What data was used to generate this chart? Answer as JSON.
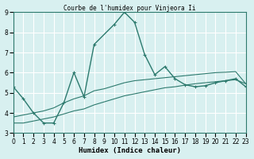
{
  "title": "Courbe de l'humidex pour Vinjeora Ii",
  "xlabel": "Humidex (Indice chaleur)",
  "bg_color": "#d8f0f0",
  "grid_color": "#ffffff",
  "line_color": "#2d7a6e",
  "xlim": [
    0,
    23
  ],
  "ylim": [
    3,
    9
  ],
  "xticks": [
    0,
    1,
    2,
    3,
    4,
    5,
    6,
    7,
    8,
    9,
    10,
    11,
    12,
    13,
    14,
    15,
    16,
    17,
    18,
    19,
    20,
    21,
    22,
    23
  ],
  "yticks": [
    3,
    4,
    5,
    6,
    7,
    8,
    9
  ],
  "main_line_x": [
    0,
    1,
    2,
    3,
    4,
    5,
    6,
    7,
    8,
    10,
    11,
    12,
    13,
    14,
    15,
    16,
    17,
    18,
    19,
    20,
    21,
    22,
    23
  ],
  "main_line_y": [
    5.3,
    4.7,
    4.0,
    3.5,
    3.5,
    4.5,
    6.0,
    4.8,
    7.4,
    8.4,
    9.0,
    8.5,
    6.9,
    5.9,
    6.3,
    5.7,
    5.4,
    5.3,
    5.35,
    5.5,
    5.6,
    5.7,
    5.3
  ],
  "lower_line_x": [
    0,
    1,
    2,
    3,
    4,
    5,
    6,
    7,
    8,
    9,
    10,
    11,
    12,
    13,
    14,
    15,
    16,
    17,
    18,
    19,
    20,
    21,
    22,
    23
  ],
  "lower_line_y": [
    3.5,
    3.5,
    3.6,
    3.7,
    3.8,
    3.95,
    4.1,
    4.2,
    4.4,
    4.55,
    4.7,
    4.85,
    4.95,
    5.05,
    5.15,
    5.25,
    5.3,
    5.38,
    5.45,
    5.5,
    5.55,
    5.6,
    5.65,
    5.45
  ],
  "upper_line_x": [
    0,
    1,
    2,
    3,
    4,
    5,
    6,
    7,
    8,
    9,
    10,
    11,
    12,
    13,
    14,
    15,
    16,
    17,
    18,
    19,
    20,
    21,
    22,
    23
  ],
  "upper_line_y": [
    3.8,
    3.9,
    4.0,
    4.1,
    4.25,
    4.5,
    4.7,
    4.85,
    5.1,
    5.2,
    5.35,
    5.5,
    5.6,
    5.65,
    5.7,
    5.75,
    5.8,
    5.85,
    5.9,
    5.95,
    6.0,
    6.02,
    6.05,
    5.45
  ]
}
